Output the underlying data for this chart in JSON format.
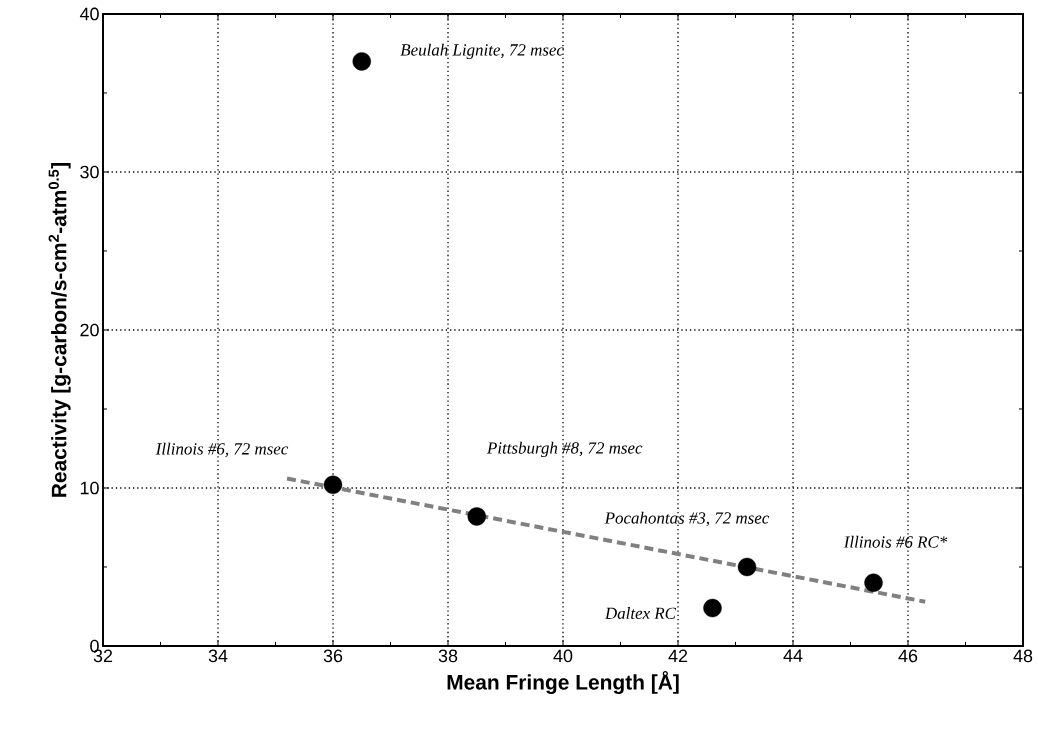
{
  "chart_data": {
    "type": "scatter",
    "xlabel": "Mean Fringe Length  [Å]",
    "ylabel": "Reactivity [g-carbon/s-cm$^{2}$-atm$^{0.5}$]",
    "xlim": [
      32,
      48
    ],
    "xticks": [
      32,
      34,
      36,
      38,
      40,
      42,
      44,
      46,
      48
    ],
    "ylim": [
      0,
      40
    ],
    "yticks": [
      0,
      10,
      20,
      30,
      40
    ],
    "grid": true,
    "marker": "circle",
    "series": [
      {
        "color": "#000000",
        "x": [
          36.5,
          36.0,
          38.5,
          43.2,
          42.6,
          45.4
        ],
        "values": [
          37.0,
          10.2,
          8.2,
          5.0,
          2.4,
          4.0
        ]
      },
      {
        "type": "line",
        "color": "#808080",
        "line_style": "dashed",
        "marker": "none",
        "x": [
          35.2,
          46.3
        ],
        "values": [
          10.6,
          2.8
        ]
      }
    ],
    "annotations": [
      "Beulah Lignite, 72 msec",
      "Illinois #6, 72 msec",
      "Pittsburgh #8, 72 msec",
      "Pocahontas #3, 72 msec",
      "Daltex RC",
      "Illinois #6 RC*"
    ]
  }
}
